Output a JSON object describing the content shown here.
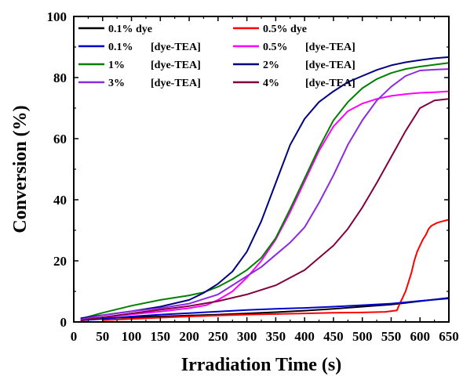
{
  "chart_data": {
    "type": "line",
    "title": "",
    "xlabel": "Irradiation Time (s)",
    "ylabel": "Conversion (%)",
    "xlim": [
      0,
      650
    ],
    "ylim": [
      0,
      100
    ],
    "xticks": [
      0,
      50,
      100,
      150,
      200,
      250,
      300,
      350,
      400,
      450,
      500,
      550,
      600,
      650
    ],
    "yticks": [
      0,
      20,
      40,
      60,
      80,
      100
    ],
    "grid": false,
    "legend_position": "top",
    "series": [
      {
        "name": "0.1% dye",
        "legend_pct": "0.1% dye",
        "legend_desc": "",
        "color": "#000000",
        "points": [
          [
            12,
            1
          ],
          [
            50,
            1.2
          ],
          [
            100,
            1.5
          ],
          [
            150,
            1.8
          ],
          [
            200,
            2.1
          ],
          [
            250,
            2.4
          ],
          [
            300,
            2.8
          ],
          [
            350,
            3.2
          ],
          [
            400,
            3.7
          ],
          [
            450,
            4.3
          ],
          [
            500,
            5.0
          ],
          [
            550,
            5.7
          ],
          [
            600,
            6.8
          ],
          [
            650,
            7.9
          ]
        ]
      },
      {
        "name": "0.5% dye",
        "legend_pct": "0.5% dye",
        "legend_desc": "",
        "color": "#ff0000",
        "points": [
          [
            50,
            0.6
          ],
          [
            100,
            1.0
          ],
          [
            150,
            1.4
          ],
          [
            200,
            1.8
          ],
          [
            250,
            2.1
          ],
          [
            300,
            2.4
          ],
          [
            350,
            2.6
          ],
          [
            400,
            2.8
          ],
          [
            450,
            3.0
          ],
          [
            500,
            3.1
          ],
          [
            540,
            3.3
          ],
          [
            560,
            3.8
          ],
          [
            565,
            6
          ],
          [
            570,
            8
          ],
          [
            575,
            10
          ],
          [
            580,
            13
          ],
          [
            585,
            16
          ],
          [
            590,
            20
          ],
          [
            595,
            23
          ],
          [
            600,
            25
          ],
          [
            605,
            27
          ],
          [
            610,
            28.5
          ],
          [
            615,
            30.5
          ],
          [
            620,
            31.5
          ],
          [
            630,
            32.5
          ],
          [
            640,
            33
          ],
          [
            650,
            33.5
          ]
        ]
      },
      {
        "name": "0.1% [dye-TEA]",
        "legend_pct": "0.1%",
        "legend_desc": "[dye-TEA]",
        "color": "#0000cd",
        "points": [
          [
            12,
            0.5
          ],
          [
            50,
            1.0
          ],
          [
            100,
            1.8
          ],
          [
            150,
            2.4
          ],
          [
            200,
            2.9
          ],
          [
            250,
            3.4
          ],
          [
            300,
            3.9
          ],
          [
            350,
            4.3
          ],
          [
            400,
            4.6
          ],
          [
            450,
            5.0
          ],
          [
            500,
            5.5
          ],
          [
            550,
            6.0
          ],
          [
            600,
            6.9
          ],
          [
            650,
            7.7
          ]
        ]
      },
      {
        "name": "0.5% [dye-TEA]",
        "legend_pct": "0.5%",
        "legend_desc": "[dye-TEA]",
        "color": "#ff00ff",
        "points": [
          [
            12,
            0.5
          ],
          [
            50,
            1.5
          ],
          [
            100,
            2.5
          ],
          [
            150,
            3.4
          ],
          [
            200,
            4.5
          ],
          [
            230,
            5.5
          ],
          [
            250,
            7.2
          ],
          [
            275,
            10
          ],
          [
            300,
            14.5
          ],
          [
            325,
            20
          ],
          [
            350,
            27
          ],
          [
            375,
            36
          ],
          [
            400,
            46
          ],
          [
            425,
            56
          ],
          [
            450,
            64
          ],
          [
            475,
            69
          ],
          [
            500,
            71.5
          ],
          [
            525,
            73
          ],
          [
            550,
            74
          ],
          [
            575,
            74.6
          ],
          [
            600,
            75
          ],
          [
            625,
            75.2
          ],
          [
            650,
            75.5
          ]
        ]
      },
      {
        "name": "1% [dye-TEA]",
        "legend_pct": "1%",
        "legend_desc": "[dye-TEA]",
        "color": "#008000",
        "points": [
          [
            12,
            1
          ],
          [
            50,
            3
          ],
          [
            100,
            5.3
          ],
          [
            150,
            7.2
          ],
          [
            200,
            8.7
          ],
          [
            225,
            9.7
          ],
          [
            250,
            11.5
          ],
          [
            275,
            14
          ],
          [
            300,
            17
          ],
          [
            325,
            21
          ],
          [
            350,
            27.5
          ],
          [
            375,
            37
          ],
          [
            400,
            47
          ],
          [
            425,
            57
          ],
          [
            450,
            66
          ],
          [
            475,
            72
          ],
          [
            500,
            76.5
          ],
          [
            525,
            79.5
          ],
          [
            550,
            81.5
          ],
          [
            575,
            82.8
          ],
          [
            600,
            83.6
          ],
          [
            625,
            84.2
          ],
          [
            650,
            84.8
          ]
        ]
      },
      {
        "name": "2% [dye-TEA]",
        "legend_pct": "2%",
        "legend_desc": "[dye-TEA]",
        "color": "#000080",
        "points": [
          [
            12,
            1.2
          ],
          [
            50,
            2.2
          ],
          [
            100,
            3.5
          ],
          [
            150,
            5
          ],
          [
            200,
            7.2
          ],
          [
            225,
            9.5
          ],
          [
            250,
            12.5
          ],
          [
            275,
            16.5
          ],
          [
            300,
            23
          ],
          [
            325,
            33
          ],
          [
            350,
            45.5
          ],
          [
            375,
            58
          ],
          [
            400,
            66.5
          ],
          [
            425,
            72
          ],
          [
            450,
            75.5
          ],
          [
            475,
            78.5
          ],
          [
            500,
            80.5
          ],
          [
            525,
            82.5
          ],
          [
            550,
            84
          ],
          [
            575,
            85
          ],
          [
            600,
            85.7
          ],
          [
            625,
            86.3
          ],
          [
            650,
            86.7
          ]
        ]
      },
      {
        "name": "3% [dye-TEA]",
        "legend_pct": "3%",
        "legend_desc": "[dye-TEA]",
        "color": "#8a2be2",
        "points": [
          [
            12,
            0.8
          ],
          [
            50,
            2.2
          ],
          [
            100,
            3.5
          ],
          [
            150,
            4.5
          ],
          [
            200,
            6
          ],
          [
            250,
            9
          ],
          [
            300,
            15
          ],
          [
            325,
            18
          ],
          [
            350,
            22
          ],
          [
            375,
            26
          ],
          [
            400,
            31
          ],
          [
            425,
            39
          ],
          [
            450,
            48
          ],
          [
            475,
            58
          ],
          [
            500,
            66
          ],
          [
            525,
            72.5
          ],
          [
            550,
            77
          ],
          [
            575,
            80.5
          ],
          [
            600,
            82.3
          ],
          [
            625,
            82.6
          ],
          [
            650,
            82.8
          ]
        ]
      },
      {
        "name": "4% [dye-TEA]",
        "legend_pct": "4%",
        "legend_desc": "[dye-TEA]",
        "color": "#800040",
        "points": [
          [
            12,
            0.5
          ],
          [
            50,
            1.5
          ],
          [
            100,
            2.8
          ],
          [
            150,
            4
          ],
          [
            200,
            5.2
          ],
          [
            250,
            6.8
          ],
          [
            300,
            9
          ],
          [
            350,
            12
          ],
          [
            400,
            17
          ],
          [
            450,
            25
          ],
          [
            475,
            30.5
          ],
          [
            500,
            37.5
          ],
          [
            525,
            45.5
          ],
          [
            550,
            54
          ],
          [
            575,
            62.5
          ],
          [
            600,
            70
          ],
          [
            625,
            72.5
          ],
          [
            650,
            73
          ]
        ]
      }
    ]
  }
}
